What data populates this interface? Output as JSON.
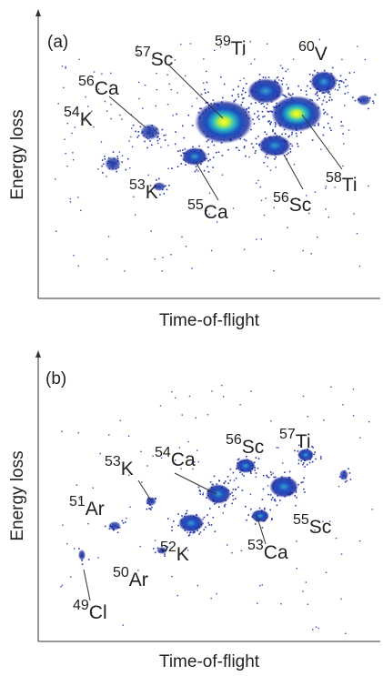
{
  "panels": [
    {
      "label": "(a)",
      "y_label": "Energy loss",
      "x_label": "Time-of-flight",
      "isotopes": [
        {
          "mass": "57",
          "element": "Sc"
        },
        {
          "mass": "59",
          "element": "Ti"
        },
        {
          "mass": "60",
          "element": "V"
        },
        {
          "mass": "56",
          "element": "Ca"
        },
        {
          "mass": "54",
          "element": "K"
        },
        {
          "mass": "53",
          "element": "K"
        },
        {
          "mass": "55",
          "element": "Ca"
        },
        {
          "mass": "56",
          "element": "Sc"
        },
        {
          "mass": "58",
          "element": "Ti"
        }
      ]
    },
    {
      "label": "(b)",
      "y_label": "Energy loss",
      "x_label": "Time-of-flight",
      "isotopes": [
        {
          "mass": "53",
          "element": "K"
        },
        {
          "mass": "54",
          "element": "Ca"
        },
        {
          "mass": "56",
          "element": "Sc"
        },
        {
          "mass": "57",
          "element": "Ti"
        },
        {
          "mass": "51",
          "element": "Ar"
        },
        {
          "mass": "55",
          "element": "Sc"
        },
        {
          "mass": "53",
          "element": "Ca"
        },
        {
          "mass": "52",
          "element": "K"
        },
        {
          "mass": "50",
          "element": "Ar"
        },
        {
          "mass": "49",
          "element": "Cl"
        }
      ]
    }
  ]
}
